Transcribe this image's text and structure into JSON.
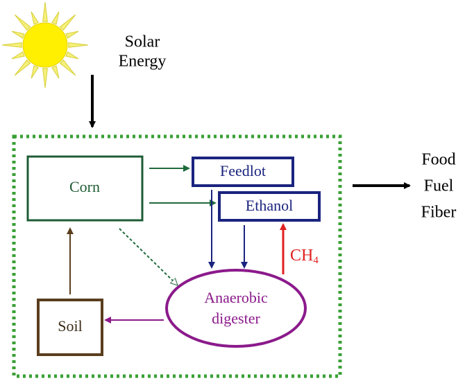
{
  "source": {
    "label": [
      "Solar",
      "Energy"
    ]
  },
  "nodes": {
    "corn": {
      "label": "Corn"
    },
    "feedlot": {
      "label": "Feedlot"
    },
    "ethanol": {
      "label": "Ethanol"
    },
    "digester": {
      "label": [
        "Anaerobic",
        "digester"
      ]
    },
    "soil": {
      "label": "Soil"
    },
    "methane": {
      "label": "CH",
      "subscript": "4"
    }
  },
  "outputs": {
    "label": [
      "Food",
      "Fuel",
      "Fiber"
    ]
  }
}
